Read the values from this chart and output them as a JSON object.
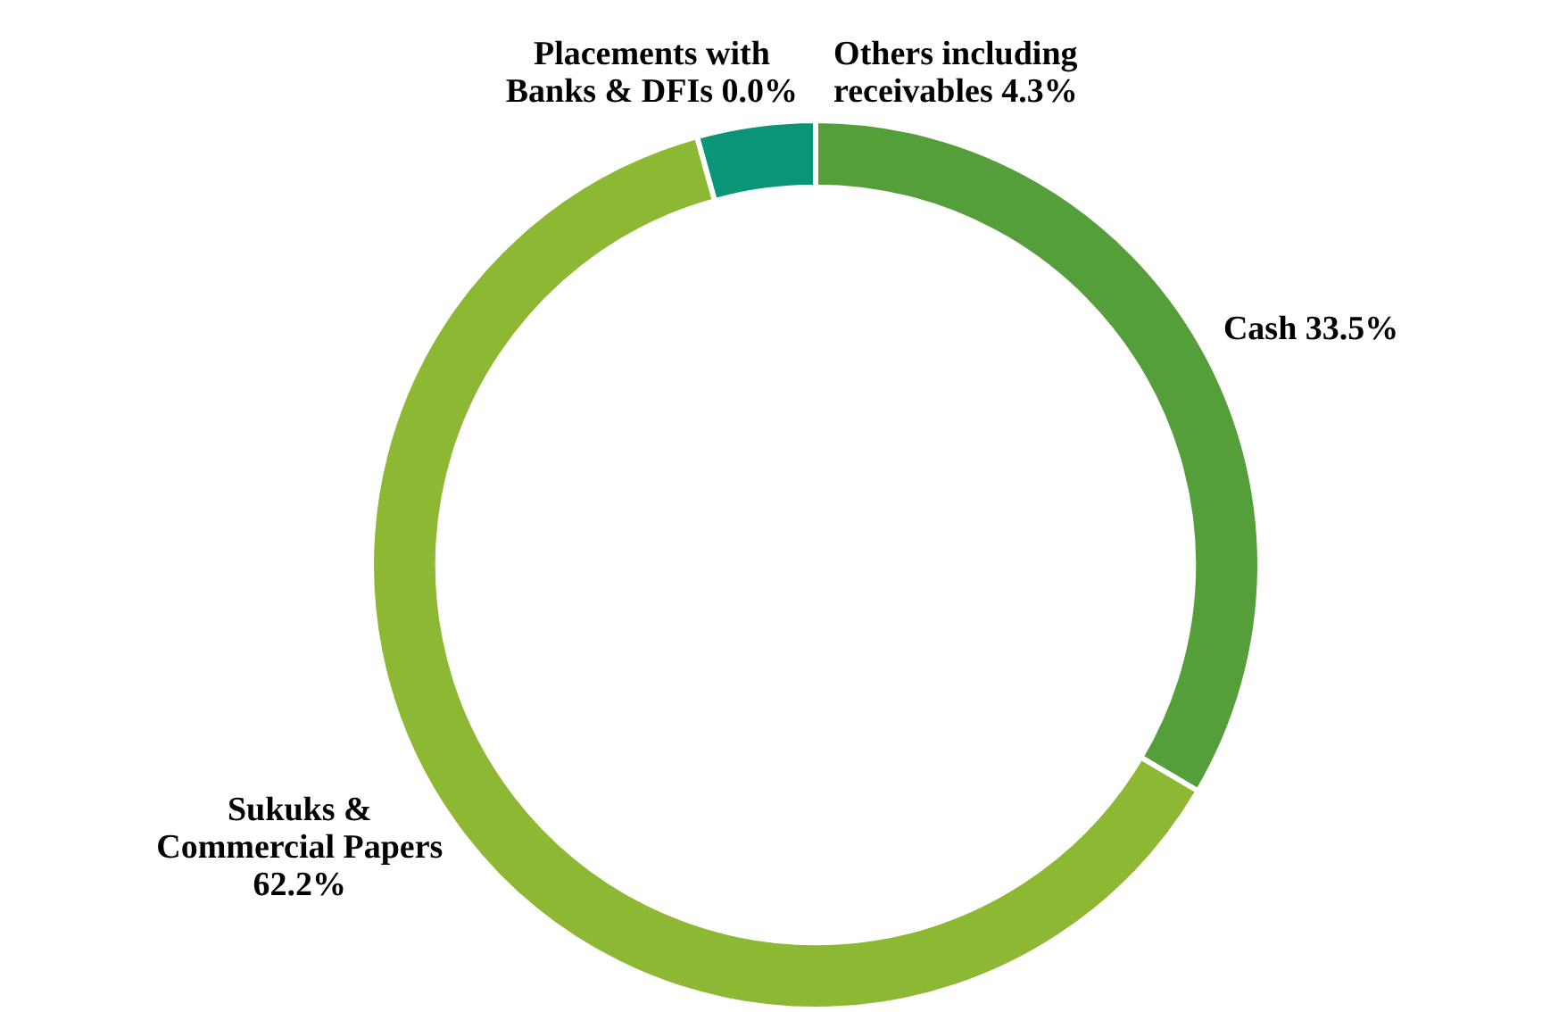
{
  "chart_data": {
    "type": "donut",
    "categories": [
      "Cash",
      "Sukuks & Commercial Papers",
      "Placements with Banks & DFIs",
      "Others including receivables"
    ],
    "values": [
      33.5,
      62.2,
      0.0,
      4.3
    ],
    "value_labels": [
      "33.5%",
      "62.2%",
      "0.0%",
      "4.3%"
    ],
    "colors": [
      "#559f3a",
      "#8db833",
      "#1f8a5a",
      "#0a9578"
    ],
    "legend": false
  }
}
